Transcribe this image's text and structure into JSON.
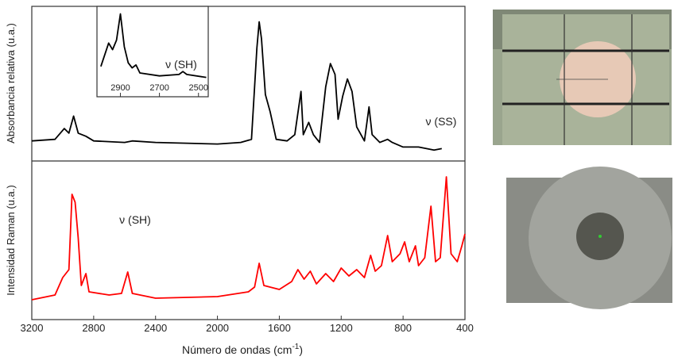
{
  "chart_data": [
    {
      "type": "line",
      "y_label": "Absorbancia relativa (u.a.)",
      "x": [
        3200,
        3050,
        2990,
        2960,
        2930,
        2900,
        2850,
        2800,
        2600,
        2550,
        2400,
        2000,
        1850,
        1780,
        1745,
        1730,
        1715,
        1690,
        1660,
        1620,
        1550,
        1500,
        1460,
        1445,
        1410,
        1380,
        1340,
        1300,
        1270,
        1240,
        1220,
        1190,
        1160,
        1130,
        1100,
        1050,
        1020,
        1000,
        950,
        900,
        870,
        800,
        700,
        600,
        550
      ],
      "series": [
        {
          "color": "#000000",
          "values": [
            0.13,
            0.14,
            0.21,
            0.18,
            0.29,
            0.18,
            0.16,
            0.13,
            0.12,
            0.13,
            0.12,
            0.11,
            0.12,
            0.14,
            0.73,
            0.9,
            0.79,
            0.43,
            0.32,
            0.14,
            0.13,
            0.17,
            0.45,
            0.17,
            0.25,
            0.17,
            0.12,
            0.48,
            0.63,
            0.56,
            0.27,
            0.42,
            0.53,
            0.45,
            0.22,
            0.13,
            0.35,
            0.17,
            0.12,
            0.14,
            0.12,
            0.09,
            0.09,
            0.07,
            0.08
          ]
        }
      ],
      "xlim": [
        3200,
        400
      ],
      "ylim": [
        0,
        1
      ],
      "annotations": [
        "ν (SS)"
      ]
    },
    {
      "type": "line",
      "y_label": "Intensidad Raman (u.a.)",
      "x_label": {
        "text": "Número de ondas (cm",
        "superscript": "-1",
        "close": ")"
      },
      "x": [
        3200,
        3050,
        3000,
        2960,
        2940,
        2920,
        2900,
        2880,
        2850,
        2830,
        2700,
        2620,
        2580,
        2550,
        2400,
        2000,
        1800,
        1760,
        1730,
        1700,
        1600,
        1520,
        1480,
        1440,
        1400,
        1360,
        1300,
        1250,
        1200,
        1150,
        1100,
        1050,
        1010,
        980,
        940,
        900,
        870,
        820,
        790,
        760,
        720,
        700,
        660,
        620,
        590,
        560,
        520,
        490,
        450,
        420,
        400
      ],
      "series": [
        {
          "color": "#ff0000",
          "values": [
            0.125,
            0.155,
            0.265,
            0.315,
            0.79,
            0.74,
            0.515,
            0.215,
            0.29,
            0.175,
            0.155,
            0.165,
            0.3,
            0.165,
            0.135,
            0.145,
            0.175,
            0.205,
            0.355,
            0.215,
            0.19,
            0.24,
            0.315,
            0.255,
            0.305,
            0.225,
            0.29,
            0.24,
            0.325,
            0.275,
            0.315,
            0.265,
            0.405,
            0.305,
            0.34,
            0.53,
            0.365,
            0.415,
            0.49,
            0.365,
            0.465,
            0.34,
            0.39,
            0.715,
            0.365,
            0.39,
            0.9,
            0.415,
            0.365,
            0.465,
            0.54
          ]
        }
      ],
      "xlim": [
        3200,
        400
      ],
      "ylim": [
        0,
        1
      ],
      "xticks": [
        3200,
        2800,
        2400,
        2000,
        1600,
        1200,
        800,
        400
      ],
      "annotations": [
        "ν (SH)"
      ]
    },
    {
      "type": "line",
      "x": [
        3000,
        2960,
        2940,
        2920,
        2900,
        2880,
        2860,
        2840,
        2820,
        2800,
        2700,
        2600,
        2580,
        2560,
        2460
      ],
      "series": [
        {
          "color": "#000000",
          "values": [
            0.22,
            0.54,
            0.45,
            0.58,
            0.94,
            0.49,
            0.27,
            0.2,
            0.24,
            0.13,
            0.09,
            0.11,
            0.15,
            0.11,
            0.07
          ]
        }
      ],
      "xlim": [
        3020,
        2450
      ],
      "ylim": [
        0,
        1
      ],
      "xticks": [
        2900,
        2700,
        2500
      ],
      "annotations": [
        "ν (SH)"
      ]
    }
  ]
}
